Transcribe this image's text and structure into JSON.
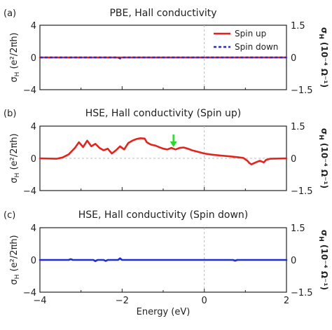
{
  "chart_data": [
    {
      "type": "line",
      "panel_label": "(a)",
      "title": "PBE, Hall conductivity",
      "xlim": [
        -4,
        2
      ],
      "ylim": [
        -4,
        4
      ],
      "yticks": [
        "4",
        "0",
        "-4"
      ],
      "ylabel": "σH (e²/2πh)",
      "ylim_right": [
        -1.5,
        1.5
      ],
      "yticks_right": [
        "1.5",
        "0",
        "-1.5"
      ],
      "ylabel_right": "σH (10⁻⁴ Ω⁻¹)",
      "legend": {
        "placement": "top-right",
        "entries": [
          "Spin up",
          "Spin down"
        ]
      },
      "series": [
        {
          "name": "Spin up",
          "color": "#e8221a",
          "style": "solid",
          "x": [
            -4,
            2
          ],
          "y": [
            0,
            0
          ]
        },
        {
          "name": "Spin down",
          "color": "#1f2fd6",
          "style": "dotted",
          "x": [
            -4,
            -2.1,
            -2.05,
            -2.0,
            2
          ],
          "y": [
            0,
            0,
            -0.12,
            0,
            0
          ]
        }
      ]
    },
    {
      "type": "line",
      "panel_label": "(b)",
      "title": "HSE, Hall conductivity (Spin up)",
      "xlim": [
        -4,
        2
      ],
      "ylim": [
        -4,
        4
      ],
      "yticks": [
        "4",
        "0",
        "-4"
      ],
      "ylabel": "σH (e²/2πh)",
      "ylim_right": [
        -1.5,
        1.5
      ],
      "yticks_right": [
        "1.5",
        "0",
        "-1.5"
      ],
      "ylabel_right": "σH (10⁻⁴ Ω⁻¹)",
      "annotation": {
        "type": "arrow",
        "x": -0.75,
        "y": 1.4,
        "color": "#22dd22"
      },
      "series": [
        {
          "name": "Spin up",
          "color": "#e8221a",
          "style": "solid",
          "x": [
            -4.0,
            -3.6,
            -3.45,
            -3.3,
            -3.15,
            -3.05,
            -2.95,
            -2.85,
            -2.75,
            -2.65,
            -2.55,
            -2.45,
            -2.35,
            -2.25,
            -2.15,
            -2.05,
            -1.95,
            -1.85,
            -1.75,
            -1.65,
            -1.55,
            -1.45,
            -1.4,
            -1.3,
            -1.2,
            -1.1,
            -1.0,
            -0.9,
            -0.8,
            -0.7,
            -0.6,
            -0.5,
            -0.4,
            -0.3,
            -0.15,
            0.0,
            0.2,
            0.4,
            0.6,
            0.8,
            0.95,
            1.05,
            1.1,
            1.15,
            1.25,
            1.35,
            1.45,
            1.5,
            1.6,
            2.0
          ],
          "y": [
            0.0,
            -0.05,
            0.1,
            0.5,
            1.3,
            2.0,
            1.4,
            2.2,
            1.5,
            1.8,
            1.3,
            1.0,
            1.2,
            0.6,
            1.0,
            1.5,
            1.1,
            1.9,
            2.2,
            2.4,
            2.5,
            2.45,
            2.0,
            1.7,
            1.6,
            1.4,
            1.2,
            1.1,
            1.3,
            1.1,
            1.3,
            1.35,
            1.2,
            1.0,
            0.8,
            0.6,
            0.45,
            0.35,
            0.25,
            0.15,
            0.05,
            -0.3,
            -0.6,
            -0.75,
            -0.5,
            -0.3,
            -0.5,
            -0.2,
            -0.05,
            0.0
          ]
        }
      ]
    },
    {
      "type": "line",
      "panel_label": "(c)",
      "title": "HSE, Hall conductivity (Spin down)",
      "xlim": [
        -4,
        2
      ],
      "ylim": [
        -4,
        4
      ],
      "yticks": [
        "4",
        "0",
        "-4"
      ],
      "ylabel": "σH (e²/2πh)",
      "ylim_right": [
        -1.5,
        1.5
      ],
      "yticks_right": [
        "1.5",
        "0",
        "-1.5"
      ],
      "ylabel_right": "σH (10⁻⁴ Ω⁻¹)",
      "xlabel": "Energy (eV)",
      "xticks": [
        "-4",
        "-2",
        "0",
        "2"
      ],
      "series": [
        {
          "name": "Spin down",
          "color": "#1f2fd6",
          "style": "solid",
          "x": [
            -4.0,
            -3.3,
            -3.25,
            -3.2,
            -2.7,
            -2.65,
            -2.6,
            -2.45,
            -2.4,
            -2.35,
            -2.1,
            -2.05,
            -2.0,
            0.7,
            0.75,
            0.8,
            2.0
          ],
          "y": [
            0.0,
            0.0,
            0.1,
            0.0,
            0.0,
            -0.15,
            0.0,
            0.0,
            -0.12,
            0.0,
            0.0,
            0.2,
            0.0,
            0.0,
            -0.1,
            0.0,
            0.0
          ]
        }
      ]
    }
  ]
}
